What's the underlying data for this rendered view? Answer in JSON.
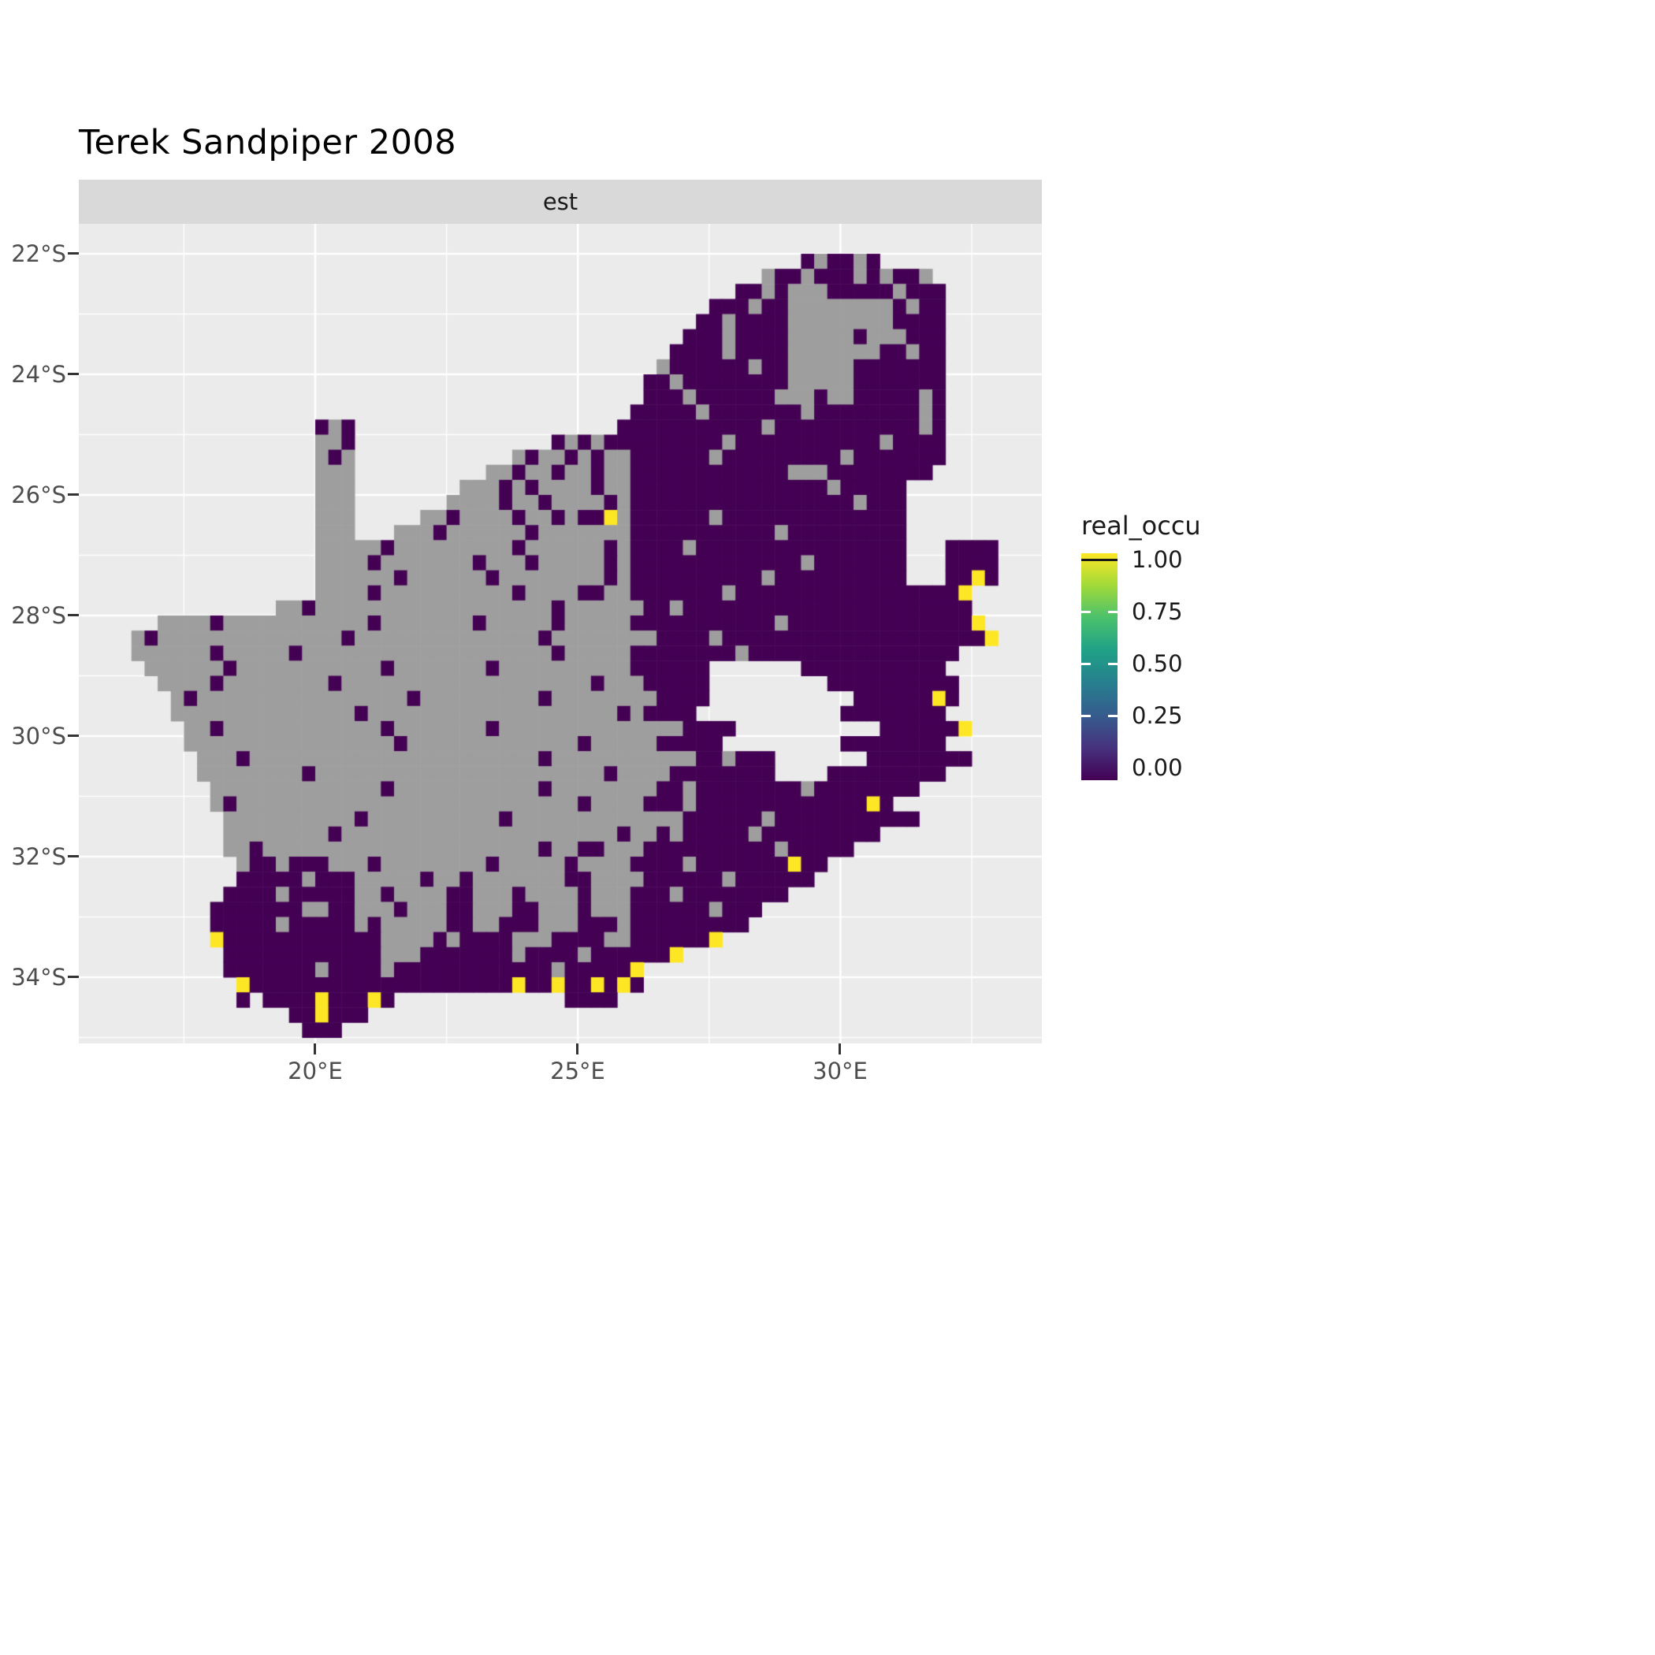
{
  "title": "Terek Sandpiper 2008",
  "facet": {
    "label": "est"
  },
  "axes": {
    "y_ticks": [
      "22°S",
      "24°S",
      "26°S",
      "28°S",
      "30°S",
      "32°S",
      "34°S"
    ],
    "y_tick_values": [
      22,
      24,
      26,
      28,
      30,
      32,
      34
    ],
    "x_ticks": [
      "20°E",
      "25°E",
      "30°E"
    ],
    "x_tick_values": [
      20,
      25,
      30
    ]
  },
  "legend": {
    "title": "real_occu",
    "tick_labels": [
      "1.00",
      "0.75",
      "0.50",
      "0.25",
      "0.00"
    ],
    "tick_values": [
      1.0,
      0.75,
      0.5,
      0.25,
      0.0
    ],
    "viridis_stops_bottom_to_top": [
      "#440154",
      "#46327e",
      "#365c8d",
      "#277f8e",
      "#1fa187",
      "#4ac16d",
      "#a0da39",
      "#fde725"
    ]
  },
  "panel": {
    "background": "#EBEBEB",
    "gridline_color": "#FFFFFF",
    "strip_background": "#D9D9D9"
  },
  "chart_data": {
    "type": "heatmap",
    "title": "Terek Sandpiper 2008",
    "facet": "est",
    "legend_title": "real_occu",
    "legend_range": [
      0,
      1
    ],
    "x_axis": {
      "label_format": "°E",
      "ticks": [
        20,
        25,
        30
      ],
      "range": [
        15.5,
        33.8
      ]
    },
    "y_axis": {
      "label_format": "°S",
      "ticks": [
        22,
        24,
        26,
        28,
        30,
        32,
        34
      ],
      "range": [
        21.55,
        35.05
      ]
    },
    "cell_size_deg": 0.25,
    "lon_origin": 16.0,
    "lat_origin_s": 21.75,
    "value_colors_by_char": {
      "p": "#440154",
      "y": "#FDE725",
      "g": "#9E9E9E"
    },
    "char_meaning": {
      "p": "real_occu = 0.00 (dark purple)",
      "y": "real_occu = 1.00 (yellow)",
      "g": "grey cell (no / NA estimate)",
      ".": "outside South Africa (panel background; Lesotho and Eswatini are holes)"
    },
    "grid": [
      "......................................................................",
      ".....................................................pgppgp...........",
      "..................................................gppgpppgpgppg.......",
      "................................................ppgpgggpppppgppp......",
      "..............................................pppgppggggggggpgpp......",
      ".............................................ppgppppggggggggpppp......",
      "............................................pppgppppgggggpgggppp......",
      "...........................................ppppgppppgggggggppgpp......",
      "..........................................gppppppgppgggggppppppp......",
      ".........................................ppgppppppppgggggppppppp......",
      ".........................................pppgppppppgggpggpppppgp......",
      "........................................pppppgpppppppgppppppppgp......",
      "................pgp....................pppppppppppgpppppppppppgp......",
      "................ggp...............pgpgpppppppppgpppppppppppgpppp......",
      "................gpg............gpggpgpggppppppgpppppppppgppppppp......",
      "................ggg..........ggpggpggpggppppppppppppgggpppppppp.......",
      "................ggg........gggpgpggggpggpppppppppppppppgppppp.........",
      "................ggg.......ggggpggpggggpgpppppppppppppppppgppp.........",
      "................ggg.....ggpggggpggpgppygppppppgpppppppppppppp.........",
      "................ggg...gggpggggggpgggggggpppppppppppgppppppppp.........",
      "................gggggpgggggggggpggggggpgppppgpppppppppppppppp...pppp..",
      "................ggggpgggggggpgggpgggggpgpppppppppppppgppppppp...pppp..",
      "................ggggggpggggggpggggggggpgppppppppppgpppppppppp...ppyp..",
      "................ggggpggggggggggpggggppggpppppppgpppppppppppppppppy...",
      ".............ggpggggggggggggggggggpggggggppgpppppppppppppppppppppp...",
      "....ggggpgggggggggggpgggggggpgggggpgggggpppppppppppgppppppppppppppy....",
      "..gpggggggggggggggpggggggggggggggpggggggggppppgppppppppppppppppppppy....",
      "..ggggggpgggggpgggggggggggggggggggpgggggppppppppgpppppppppppppppp.....",
      "...ggggggpgggggggggggpgggggggpggggggggggpppppp.......ppppppppppp......",
      "....ggggpggggggggpgggggggggggggggggggpgggppppp.........pppppppppp......",
      ".....gpggggggggggggggggpgggggggggpggggggggpppp...........ppppppyp.......",
      ".....ggggggggggggggpgggggggggggggggggggpgpppp...........pppppppp.......",
      "......ggpggggggggggggpgggggggpggggggggggggggpppp...........ppppppy........",
      "......ggggggggggggggggpgggggggggggggpgggggppppp.........pppppppp........",
      ".......gggpggggggggggggggggggggggpgggggggggggppgppp.......pppppppp.........",
      ".......ggggggggpggggggggggggggggggggggpggggpppppppp....ppppppppp.........",
      "........gggggggggggggpgggggggggggpggggggggppgppppppppgpppppppp..........",
      "........gpggggggggggggggggggggggggggpggggpppgpppppppppppppyp...........",
      ".........ggggggggggpggggggggggpgggggggggggggppppppgppppppppppp............",
      ".........ggggggggpgggggggggggggggggggggpggpgpppppgppppppppp.............",
      ".........ggpgggggggggggggggggggggpggppgggppppppppppgppppp..............",
      "..........gppgpppgggpggggggggpgggggpggggppppgpppppppypp...............",
      "..........pppppgpppgggggpggpgggggggppggggppppppgpppppp.................",
      ".........ppppgpppppggpggggppgggpggggpgggpppgpppppppp..................",
      "........pppppppggppgggpgggppgggppgggpgggppppppgppp....................",
      "........pppppgpppppgpgggggppggpppgggpppgppppppppp.....................",
      "........yppppppppppppggggpgppppgggppppggppppppy........................",
      ".........ppppppppppppgggpppppppgppppgppppppy..........................",
      ".........pppppppgppppgppppppppppppgpppppy.............................",
      "..........yppppppppppppppppppppyppyppypyp..............................",
      "..........p.ppppypppyp.............pppp...............................",
      "..............ppyppp..................................................",
      "...............ppp....................................................",
      "......................................................................"
    ]
  }
}
